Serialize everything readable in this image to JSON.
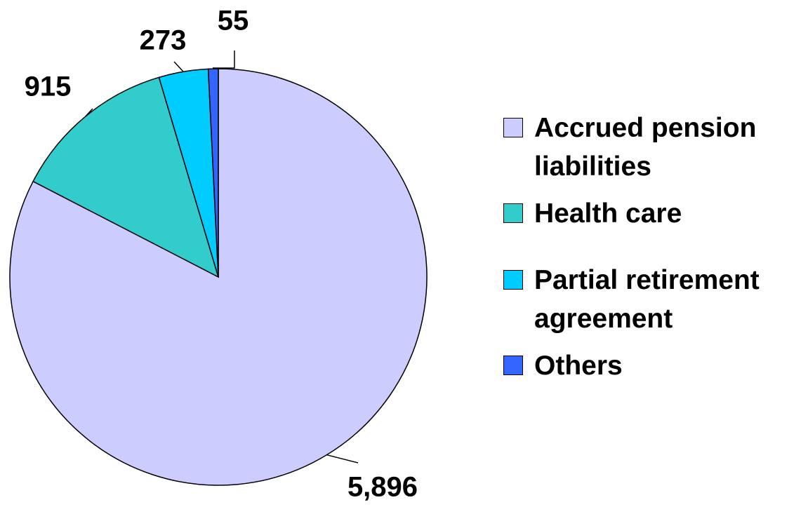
{
  "chart_data": {
    "type": "pie",
    "categories": [
      "Accrued pension liabilities",
      "Health care",
      "Partial retirement agreement",
      "Others"
    ],
    "values": [
      5896,
      915,
      273,
      55
    ],
    "value_labels": [
      "5,896",
      "915",
      "273",
      "55"
    ],
    "colors": [
      "#ccccff",
      "#33cccc",
      "#00ccff",
      "#3366ff"
    ],
    "legend": "right"
  }
}
